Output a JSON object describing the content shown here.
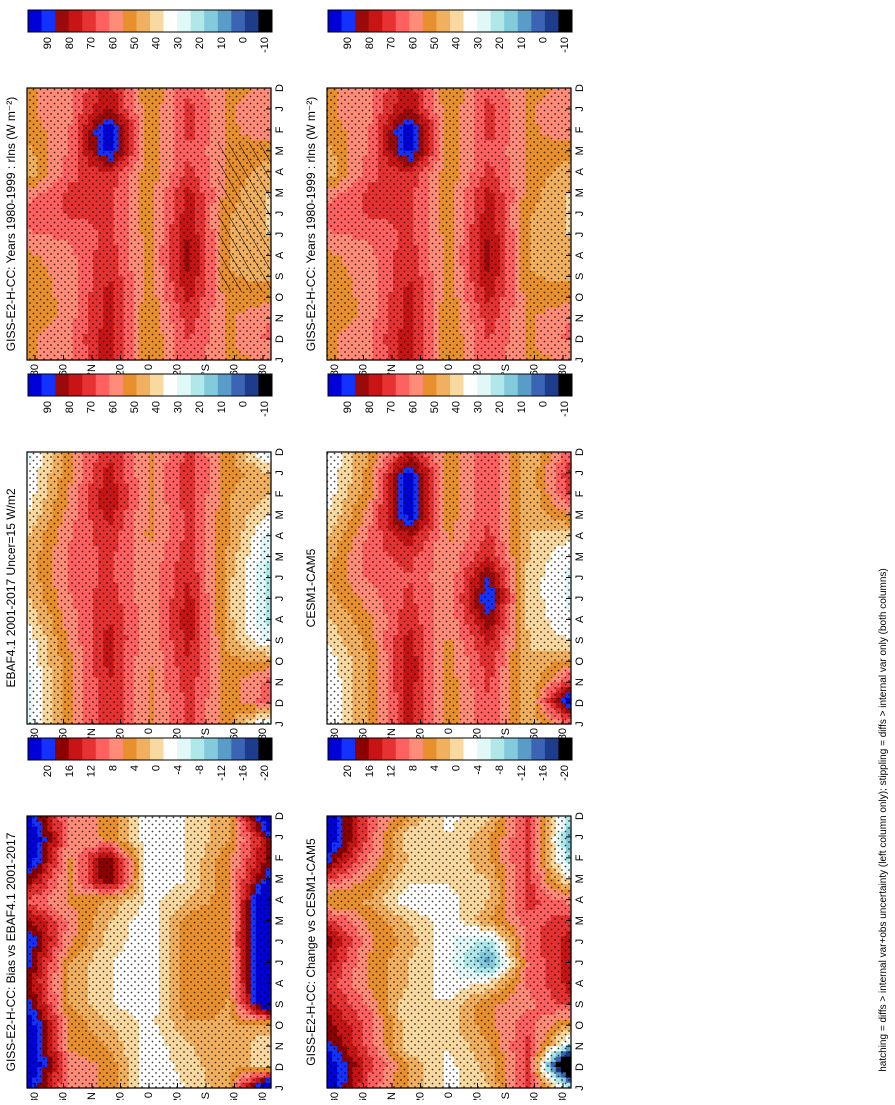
{
  "footnote": "hatching = diffs > internal var+obs uncertainty (left column only); stippling = diffs > internal var only (both columns)",
  "palettes": {
    "absolute": [
      "#0000d8",
      "#1432ff",
      "#9b0a0a",
      "#c81414",
      "#e63232",
      "#ff6060",
      "#ff8c78",
      "#e8902e",
      "#f0b060",
      "#f8d9a0",
      "#ffffff",
      "#e0f8f8",
      "#b0e8ea",
      "#82cadc",
      "#5a9cc8",
      "#3c64b4",
      "#1e3c8c",
      "#000000"
    ],
    "difference": [
      "#0000d8",
      "#1432ff",
      "#8c0000",
      "#c81414",
      "#e63232",
      "#ff6060",
      "#ff8c78",
      "#e8902e",
      "#f0b060",
      "#f8d9a0",
      "#ffffff",
      "#e0f8f8",
      "#b0e8ea",
      "#82cadc",
      "#5a9cc8",
      "#3c64b4",
      "#1e3c8c",
      "#000000"
    ]
  },
  "colorbars": {
    "absolute_ticks": [
      "90",
      "80",
      "70",
      "60",
      "50",
      "40",
      "30",
      "20",
      "10",
      "0",
      "-10"
    ],
    "difference_ticks": [
      "20",
      "16",
      "12",
      "8",
      "4",
      "0",
      "-4",
      "-8",
      "-12",
      "-16",
      "-20"
    ]
  },
  "axes": {
    "months": [
      "D",
      "J",
      "F",
      "M",
      "A",
      "M",
      "J",
      "J",
      "A",
      "S",
      "O",
      "N",
      "D",
      "J"
    ],
    "latitudes": [
      "80",
      "60",
      "°N",
      "20",
      "0",
      "20",
      "°S",
      "60",
      "80"
    ]
  },
  "chart_data": [
    {
      "type": "heatmap",
      "title": "GISS-E2-H-CC: Years 1980-1999 : rlns (W m⁻²)",
      "x": [
        "D",
        "J",
        "F",
        "M",
        "A",
        "M",
        "J",
        "J",
        "A",
        "S",
        "O",
        "N",
        "D",
        "J"
      ],
      "y": [
        "90N",
        "60N",
        "20N",
        "0",
        "20S",
        "60S",
        "90S"
      ],
      "colorbar": "absolute",
      "clim": [
        -10,
        90
      ],
      "hatching": "diffs > internal var+obs uncertainty",
      "stippling": "diffs > internal var",
      "values": [
        [
          50,
          50,
          48,
          44,
          42,
          54,
          60,
          56,
          50,
          48,
          46,
          46,
          50,
          50
        ],
        [
          55,
          56,
          56,
          58,
          60,
          64,
          63,
          58,
          55,
          54,
          54,
          54,
          56,
          55
        ],
        [
          72,
          75,
          92,
          86,
          68,
          64,
          63,
          64,
          66,
          68,
          70,
          70,
          72,
          72
        ],
        [
          45,
          46,
          46,
          46,
          47,
          48,
          48,
          48,
          48,
          48,
          47,
          46,
          45,
          45
        ],
        [
          62,
          64,
          64,
          62,
          64,
          70,
          72,
          74,
          76,
          74,
          70,
          66,
          63,
          62
        ],
        [
          50,
          50,
          50,
          50,
          50,
          48,
          46,
          45,
          45,
          46,
          48,
          50,
          50,
          50
        ],
        [
          52,
          56,
          54,
          48,
          42,
          40,
          40,
          40,
          42,
          44,
          48,
          56,
          58,
          52
        ]
      ]
    },
    {
      "type": "heatmap",
      "title": "GISS-E2-H-CC: Years 1980-1999 : rlns (W m⁻²)",
      "x": [
        "D",
        "J",
        "F",
        "M",
        "A",
        "M",
        "J",
        "J",
        "A",
        "S",
        "O",
        "N",
        "D",
        "J"
      ],
      "y": [
        "90N",
        "60N",
        "20N",
        "0",
        "20S",
        "60S",
        "90S"
      ],
      "colorbar": "absolute",
      "clim": [
        -10,
        90
      ],
      "stippling": "diffs > internal var",
      "values": [
        [
          50,
          50,
          48,
          44,
          42,
          54,
          60,
          56,
          50,
          48,
          46,
          46,
          50,
          50
        ],
        [
          55,
          56,
          56,
          58,
          60,
          64,
          63,
          58,
          55,
          54,
          54,
          54,
          56,
          55
        ],
        [
          72,
          75,
          92,
          86,
          68,
          64,
          63,
          64,
          66,
          68,
          70,
          70,
          72,
          72
        ],
        [
          45,
          46,
          46,
          46,
          47,
          48,
          48,
          48,
          48,
          48,
          47,
          46,
          45,
          45
        ],
        [
          62,
          64,
          64,
          62,
          64,
          70,
          72,
          74,
          76,
          74,
          70,
          66,
          63,
          62
        ],
        [
          50,
          50,
          50,
          50,
          50,
          48,
          46,
          45,
          45,
          46,
          48,
          50,
          50,
          50
        ],
        [
          52,
          56,
          54,
          48,
          42,
          40,
          40,
          40,
          42,
          44,
          48,
          56,
          58,
          52
        ]
      ]
    },
    {
      "type": "heatmap",
      "title": "EBAF4.1 2001-2017 Uncer=15 W/m2",
      "x": [
        "D",
        "J",
        "F",
        "M",
        "A",
        "M",
        "J",
        "J",
        "A",
        "S",
        "O",
        "N",
        "D",
        "J"
      ],
      "y": [
        "90N",
        "60N",
        "20N",
        "0",
        "20S",
        "60S",
        "90S"
      ],
      "colorbar": "absolute",
      "clim": [
        -10,
        90
      ],
      "values": [
        [
          28,
          30,
          32,
          36,
          40,
          42,
          42,
          40,
          36,
          32,
          30,
          28,
          28,
          28
        ],
        [
          50,
          50,
          52,
          54,
          56,
          58,
          58,
          56,
          54,
          52,
          50,
          50,
          50,
          50
        ],
        [
          68,
          70,
          74,
          70,
          66,
          64,
          64,
          66,
          68,
          70,
          70,
          68,
          68,
          68
        ],
        [
          50,
          50,
          50,
          50,
          50,
          52,
          52,
          52,
          52,
          52,
          50,
          50,
          50,
          50
        ],
        [
          64,
          66,
          66,
          64,
          64,
          66,
          68,
          70,
          72,
          70,
          68,
          66,
          64,
          64
        ],
        [
          48,
          48,
          46,
          46,
          46,
          44,
          42,
          42,
          42,
          44,
          46,
          48,
          48,
          48
        ],
        [
          28,
          42,
          40,
          34,
          26,
          24,
          22,
          22,
          22,
          26,
          46,
          58,
          60,
          28
        ]
      ]
    },
    {
      "type": "heatmap",
      "title": "CESM1-CAM5",
      "x": [
        "D",
        "J",
        "F",
        "M",
        "A",
        "M",
        "J",
        "J",
        "A",
        "S",
        "O",
        "N",
        "D",
        "J"
      ],
      "y": [
        "90N",
        "60N",
        "20N",
        "0",
        "20S",
        "60S",
        "90S"
      ],
      "colorbar": "absolute",
      "clim": [
        -10,
        90
      ],
      "values": [
        [
          30,
          30,
          32,
          36,
          40,
          44,
          46,
          44,
          40,
          36,
          32,
          30,
          30,
          30
        ],
        [
          46,
          48,
          50,
          54,
          58,
          60,
          58,
          54,
          50,
          48,
          46,
          46,
          46,
          46
        ],
        [
          70,
          88,
          92,
          88,
          72,
          64,
          62,
          64,
          66,
          70,
          72,
          72,
          70,
          70
        ],
        [
          48,
          48,
          48,
          48,
          50,
          52,
          52,
          52,
          52,
          50,
          48,
          48,
          48,
          48
        ],
        [
          62,
          62,
          62,
          62,
          64,
          68,
          80,
          86,
          78,
          70,
          66,
          64,
          62,
          62
        ],
        [
          40,
          40,
          40,
          40,
          40,
          40,
          38,
          38,
          38,
          40,
          40,
          40,
          40,
          40
        ],
        [
          60,
          66,
          62,
          50,
          36,
          30,
          28,
          28,
          30,
          34,
          46,
          62,
          88,
          60
        ]
      ]
    },
    {
      "type": "heatmap",
      "title": "GISS-E2-H-CC: Bias vs EBAF4.1 2001-2017",
      "x": [
        "D",
        "J",
        "F",
        "M",
        "A",
        "M",
        "J",
        "J",
        "A",
        "S",
        "O",
        "N",
        "D",
        "J"
      ],
      "y": [
        "90N",
        "60N",
        "20N",
        "0",
        "20S",
        "60S",
        "90S"
      ],
      "colorbar": "difference",
      "clim": [
        -20,
        20
      ],
      "values": [
        [
          18,
          22,
          20,
          14,
          8,
          14,
          18,
          16,
          14,
          16,
          20,
          22,
          22,
          18
        ],
        [
          6,
          6,
          4,
          4,
          4,
          6,
          5,
          2,
          2,
          2,
          4,
          4,
          6,
          6
        ],
        [
          4,
          4,
          16,
          16,
          2,
          0,
          -1,
          -2,
          -2,
          -2,
          0,
          2,
          4,
          4
        ],
        [
          -4,
          -4,
          -4,
          -4,
          -3,
          -4,
          -4,
          -4,
          -4,
          -4,
          -3,
          -4,
          -4,
          -4
        ],
        [
          -2,
          -2,
          -2,
          -2,
          0,
          4,
          4,
          4,
          4,
          4,
          2,
          0,
          -1,
          -2
        ],
        [
          2,
          2,
          4,
          4,
          4,
          4,
          4,
          3,
          3,
          2,
          2,
          2,
          2,
          2
        ],
        [
          22,
          14,
          14,
          18,
          24,
          24,
          26,
          26,
          26,
          24,
          2,
          -2,
          -2,
          22
        ]
      ]
    },
    {
      "type": "heatmap",
      "title": "GISS-E2-H-CC: Change vs CESM1-CAM5",
      "x": [
        "D",
        "J",
        "F",
        "M",
        "A",
        "M",
        "J",
        "J",
        "A",
        "S",
        "O",
        "N",
        "D",
        "J"
      ],
      "y": [
        "90N",
        "60N",
        "20N",
        "0",
        "20S",
        "60S",
        "90S"
      ],
      "colorbar": "difference",
      "clim": [
        -20,
        20
      ],
      "values": [
        [
          20,
          20,
          16,
          8,
          2,
          10,
          14,
          12,
          10,
          12,
          14,
          16,
          20,
          20
        ],
        [
          8,
          8,
          6,
          4,
          2,
          4,
          5,
          4,
          4,
          6,
          8,
          8,
          10,
          8
        ],
        [
          2,
          -2,
          0,
          -2,
          -4,
          0,
          1,
          0,
          0,
          -2,
          -2,
          -2,
          2,
          2
        ],
        [
          -3,
          -2,
          -2,
          -2,
          -3,
          -4,
          -4,
          -4,
          -4,
          -2,
          -1,
          -2,
          -3,
          -3
        ],
        [
          0,
          2,
          2,
          0,
          0,
          2,
          -8,
          -12,
          -2,
          4,
          4,
          2,
          1,
          0
        ],
        [
          10,
          10,
          10,
          10,
          10,
          8,
          8,
          7,
          7,
          6,
          8,
          10,
          10,
          10
        ],
        [
          -8,
          -10,
          -8,
          -2,
          6,
          10,
          12,
          12,
          12,
          10,
          2,
          -6,
          -30,
          -8
        ]
      ]
    }
  ]
}
